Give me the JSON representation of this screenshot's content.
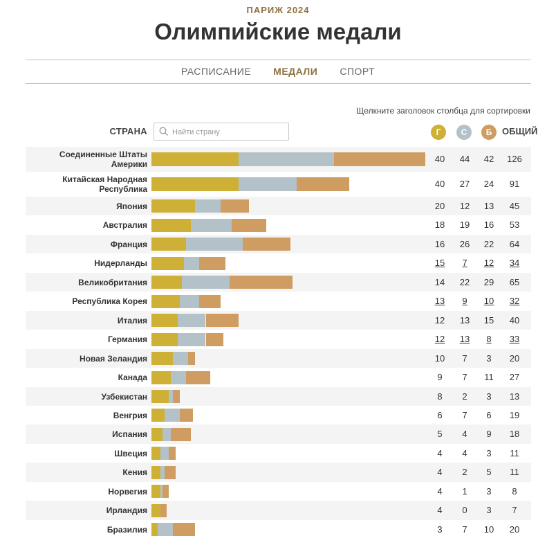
{
  "header": {
    "kicker": "ПАРИЖ 2024",
    "title": "Олимпийские медали"
  },
  "nav": {
    "items": [
      "РАСПИСАНИЕ",
      "МЕДАЛИ",
      "СПОРТ"
    ],
    "active": 1
  },
  "hint": "Щелкните заголовок столбца для сортировки",
  "table_header": {
    "country": "СТРАНА",
    "search_placeholder": "Найти страну",
    "gold": "Г",
    "silver": "С",
    "bronze": "Б",
    "total": "ОБЩИЙ"
  },
  "colors": {
    "gold": "#cdb035",
    "silver": "#b3c2c8",
    "bronze": "#cf9d62",
    "accent": "#8b7240"
  },
  "chart_data": {
    "type": "bar",
    "stacked": true,
    "orientation": "horizontal",
    "categories": [
      "Соединенные Штаты Америки",
      "Китайская Народная Республика",
      "Япония",
      "Австралия",
      "Франция",
      "Нидерланды",
      "Великобритания",
      "Республика Корея",
      "Италия",
      "Германия",
      "Новая Зеландия",
      "Канада",
      "Узбекистан",
      "Венгрия",
      "Испания",
      "Швеция",
      "Кения",
      "Норвегия",
      "Ирландия",
      "Бразилия"
    ],
    "series": [
      {
        "name": "Г",
        "values": [
          40,
          40,
          20,
          18,
          16,
          15,
          14,
          13,
          12,
          12,
          10,
          9,
          8,
          6,
          5,
          4,
          4,
          4,
          4,
          3
        ]
      },
      {
        "name": "С",
        "values": [
          44,
          27,
          12,
          19,
          26,
          7,
          22,
          9,
          13,
          13,
          7,
          7,
          2,
          7,
          4,
          4,
          2,
          1,
          0,
          7
        ]
      },
      {
        "name": "Б",
        "values": [
          42,
          24,
          13,
          16,
          22,
          12,
          29,
          10,
          15,
          8,
          3,
          11,
          3,
          6,
          9,
          3,
          5,
          3,
          3,
          10
        ]
      }
    ],
    "totals": [
      126,
      91,
      45,
      53,
      64,
      34,
      65,
      32,
      40,
      33,
      20,
      27,
      13,
      19,
      18,
      11,
      11,
      8,
      7,
      20
    ],
    "underlined_rows": [
      5,
      7,
      9
    ]
  }
}
